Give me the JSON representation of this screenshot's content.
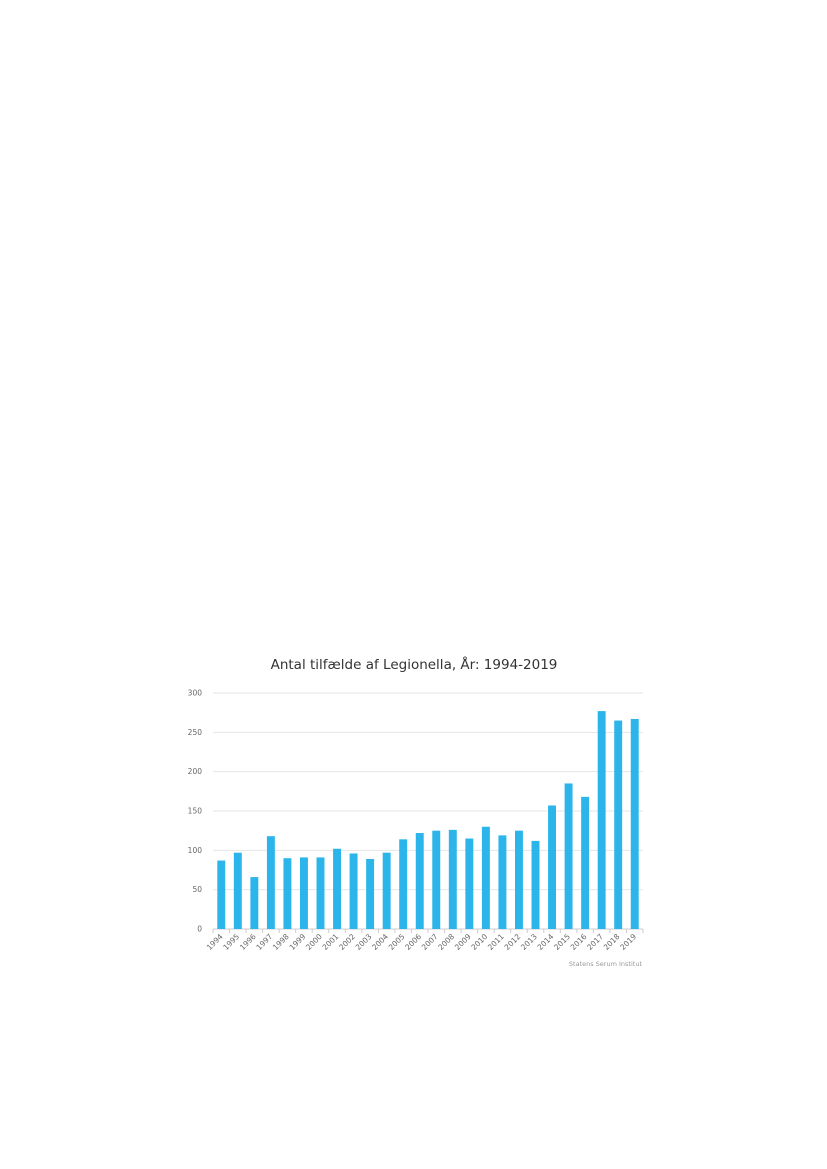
{
  "chart_data": {
    "type": "bar",
    "title": "Antal tilfælde af Legionella, År: 1994-2019",
    "xlabel": "",
    "ylabel": "",
    "categories": [
      "1994",
      "1995",
      "1996",
      "1997",
      "1998",
      "1999",
      "2000",
      "2001",
      "2002",
      "2003",
      "2004",
      "2005",
      "2006",
      "2007",
      "2008",
      "2009",
      "2010",
      "2011",
      "2012",
      "2013",
      "2014",
      "2015",
      "2016",
      "2017",
      "2018",
      "2019"
    ],
    "values": [
      87,
      97,
      66,
      118,
      90,
      91,
      91,
      102,
      96,
      89,
      97,
      114,
      122,
      125,
      126,
      115,
      130,
      119,
      125,
      112,
      157,
      185,
      168,
      277,
      265,
      267
    ],
    "ylim": [
      0,
      300
    ],
    "yticks": [
      0,
      50,
      100,
      150,
      200,
      250,
      300
    ],
    "grid": true,
    "bar_color": "#2bb5ea",
    "credit": "Statens Serum Institut"
  }
}
